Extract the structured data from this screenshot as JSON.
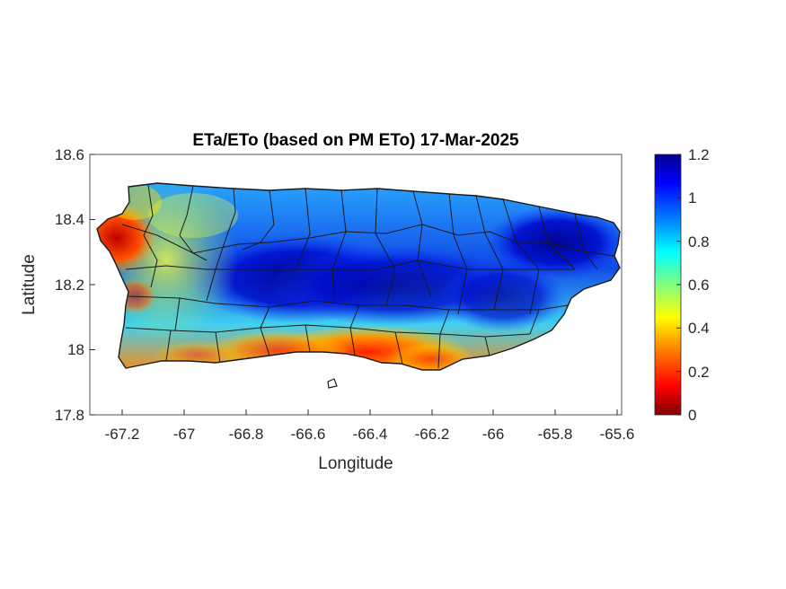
{
  "title": "ETa/ETo (based on PM ETo) 17-Mar-2025",
  "map": {
    "xlabel": "Longitude",
    "ylabel": "Latitude",
    "xlim": [
      -67.3,
      -65.58
    ],
    "ylim": [
      17.8,
      18.6
    ],
    "xticks": [
      "-67.2",
      "-67",
      "-66.8",
      "-66.6",
      "-66.4",
      "-66.2",
      "-66",
      "-65.8",
      "-65.6"
    ],
    "yticks": [
      "18.6",
      "18.4",
      "18.2",
      "18",
      "17.8"
    ],
    "region": "Puerto Rico municipalities"
  },
  "colorbar": {
    "ticks": [
      "1.2",
      "1",
      "0.8",
      "0.6",
      "0.4",
      "0.2",
      "0"
    ],
    "range": [
      0,
      1.2
    ],
    "colormap": "jet",
    "colors": [
      "#800000",
      "#ff0000",
      "#ff8000",
      "#ffff00",
      "#80ff80",
      "#00ffff",
      "#0080ff",
      "#0000ff",
      "#00008f"
    ]
  }
}
